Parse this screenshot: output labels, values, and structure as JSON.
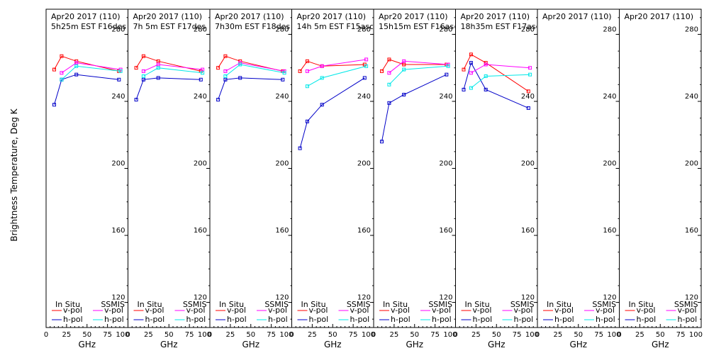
{
  "ylabel": "Brightness Temperature, Deg K",
  "xlabel": "GHz",
  "legend": {
    "insitu_label": "In Situ",
    "ssmis_label": "SSMIS",
    "vpol_label": "v-pol",
    "hpol_label": "h-pol"
  },
  "colors": {
    "insitu_v": "#ff0000",
    "insitu_h": "#0000c8",
    "ssmis_v": "#ff00ff",
    "ssmis_h": "#00e8e8",
    "axis": "#000000"
  },
  "chart_data": [
    {
      "type": "line",
      "panel": 1,
      "title_line1": "Apr20 2017 (110)",
      "title_line2": "5h25m EST F16des",
      "xlim": [
        0,
        100
      ],
      "ylim": [
        105,
        295
      ],
      "xticks": [
        "0",
        "25",
        "50",
        "75",
        "100"
      ],
      "yticks": [
        "120",
        "160",
        "200",
        "240",
        "280"
      ],
      "series": [
        {
          "key": "insitu_v",
          "x": [
            10,
            19,
            37,
            89
          ],
          "y": [
            259,
            267,
            264,
            258
          ]
        },
        {
          "key": "insitu_h",
          "x": [
            10,
            19,
            37,
            89
          ],
          "y": [
            238,
            253,
            256,
            253
          ]
        },
        {
          "key": "ssmis_v",
          "x": [
            19,
            37,
            91
          ],
          "y": [
            257,
            263,
            259
          ]
        },
        {
          "key": "ssmis_h",
          "x": [
            19,
            37,
            91
          ],
          "y": [
            253,
            261,
            258
          ]
        }
      ]
    },
    {
      "type": "line",
      "panel": 2,
      "title_line1": "Apr20 2017 (110)",
      "title_line2": "7h 5m  EST F17des",
      "xlim": [
        0,
        100
      ],
      "ylim": [
        105,
        295
      ],
      "xticks": [
        "0",
        "25",
        "50",
        "75",
        "100"
      ],
      "yticks": [
        "120",
        "160",
        "200",
        "240",
        "280"
      ],
      "series": [
        {
          "key": "insitu_v",
          "x": [
            10,
            19,
            37,
            89
          ],
          "y": [
            260,
            267,
            264,
            258
          ]
        },
        {
          "key": "insitu_h",
          "x": [
            10,
            19,
            37,
            89
          ],
          "y": [
            241,
            253,
            254,
            253
          ]
        },
        {
          "key": "ssmis_v",
          "x": [
            19,
            37,
            91
          ],
          "y": [
            258,
            262,
            259
          ]
        },
        {
          "key": "ssmis_h",
          "x": [
            19,
            37,
            91
          ],
          "y": [
            255,
            260,
            257
          ]
        }
      ]
    },
    {
      "type": "line",
      "panel": 3,
      "title_line1": "Apr20 2017 (110)",
      "title_line2": "7h30m  EST F18des",
      "xlim": [
        0,
        100
      ],
      "ylim": [
        105,
        295
      ],
      "xticks": [
        "0",
        "25",
        "50",
        "75",
        "100"
      ],
      "yticks": [
        "120",
        "160",
        "200",
        "240",
        "280"
      ],
      "series": [
        {
          "key": "insitu_v",
          "x": [
            10,
            19,
            37,
            89
          ],
          "y": [
            260,
            267,
            264,
            258
          ]
        },
        {
          "key": "insitu_h",
          "x": [
            10,
            19,
            37,
            89
          ],
          "y": [
            241,
            253,
            254,
            253
          ]
        },
        {
          "key": "ssmis_v",
          "x": [
            19,
            37,
            91
          ],
          "y": [
            258,
            263,
            258
          ]
        },
        {
          "key": "ssmis_h",
          "x": [
            19,
            37,
            91
          ],
          "y": [
            255,
            262,
            257
          ]
        }
      ]
    },
    {
      "type": "line",
      "panel": 4,
      "title_line1": "Apr20 2017 (110)",
      "title_line2": "14h 5m  EST F15asc",
      "xlim": [
        0,
        100
      ],
      "ylim": [
        105,
        295
      ],
      "xticks": [
        "0",
        "25",
        "50",
        "75",
        "100"
      ],
      "yticks": [
        "120",
        "160",
        "200",
        "240",
        "280"
      ],
      "series": [
        {
          "key": "insitu_v",
          "x": [
            10,
            19,
            37,
            89
          ],
          "y": [
            258,
            264,
            261,
            262
          ]
        },
        {
          "key": "insitu_h",
          "x": [
            10,
            19,
            37,
            89
          ],
          "y": [
            212,
            228,
            238,
            254
          ]
        },
        {
          "key": "ssmis_v",
          "x": [
            19,
            37,
            91
          ],
          "y": [
            258,
            261,
            265
          ]
        },
        {
          "key": "ssmis_h",
          "x": [
            19,
            37,
            91
          ],
          "y": [
            249,
            254,
            261
          ]
        }
      ]
    },
    {
      "type": "line",
      "panel": 5,
      "title_line1": "Apr20 2017 (110)",
      "title_line2": "15h15m  EST F16asc",
      "xlim": [
        0,
        100
      ],
      "ylim": [
        105,
        295
      ],
      "xticks": [
        "0",
        "25",
        "50",
        "75",
        "100"
      ],
      "yticks": [
        "120",
        "160",
        "200",
        "240",
        "280"
      ],
      "series": [
        {
          "key": "insitu_v",
          "x": [
            10,
            19,
            37,
            89
          ],
          "y": [
            258,
            265,
            262,
            262
          ]
        },
        {
          "key": "insitu_h",
          "x": [
            10,
            19,
            37,
            89
          ],
          "y": [
            216,
            239,
            244,
            256
          ]
        },
        {
          "key": "ssmis_v",
          "x": [
            19,
            37,
            91
          ],
          "y": [
            257,
            264,
            262
          ]
        },
        {
          "key": "ssmis_h",
          "x": [
            19,
            37,
            91
          ],
          "y": [
            250,
            259,
            261
          ]
        }
      ]
    },
    {
      "type": "line",
      "panel": 6,
      "title_line1": "Apr20 2017 (110)",
      "title_line2": "18h35m  EST F17asc",
      "xlim": [
        0,
        100
      ],
      "ylim": [
        105,
        295
      ],
      "xticks": [
        "0",
        "25",
        "50",
        "75",
        "100"
      ],
      "yticks": [
        "120",
        "160",
        "200",
        "240",
        "280"
      ],
      "series": [
        {
          "key": "insitu_v",
          "x": [
            10,
            19,
            37,
            89
          ],
          "y": [
            259,
            268,
            263,
            246
          ]
        },
        {
          "key": "insitu_h",
          "x": [
            10,
            19,
            37,
            89
          ],
          "y": [
            247,
            263,
            247,
            236
          ]
        },
        {
          "key": "ssmis_v",
          "x": [
            19,
            37,
            91
          ],
          "y": [
            257,
            262,
            260
          ]
        },
        {
          "key": "ssmis_h",
          "x": [
            19,
            37,
            91
          ],
          "y": [
            248,
            255,
            256
          ]
        }
      ]
    },
    {
      "type": "line",
      "panel": 7,
      "title_line1": "Apr20 2017 (110)",
      "title_line2": "",
      "xlim": [
        0,
        100
      ],
      "ylim": [
        105,
        295
      ],
      "xticks": [
        "0",
        "25",
        "50",
        "75",
        "100"
      ],
      "yticks": [
        "120",
        "160",
        "200",
        "240",
        "280"
      ],
      "series": []
    },
    {
      "type": "line",
      "panel": 8,
      "title_line1": "Apr20 2017 (110)",
      "title_line2": "",
      "xlim": [
        0,
        100
      ],
      "ylim": [
        105,
        295
      ],
      "xticks": [
        "0",
        "25",
        "50",
        "75",
        "100"
      ],
      "yticks": [
        "120",
        "160",
        "200",
        "240",
        "280"
      ],
      "series": []
    }
  ]
}
